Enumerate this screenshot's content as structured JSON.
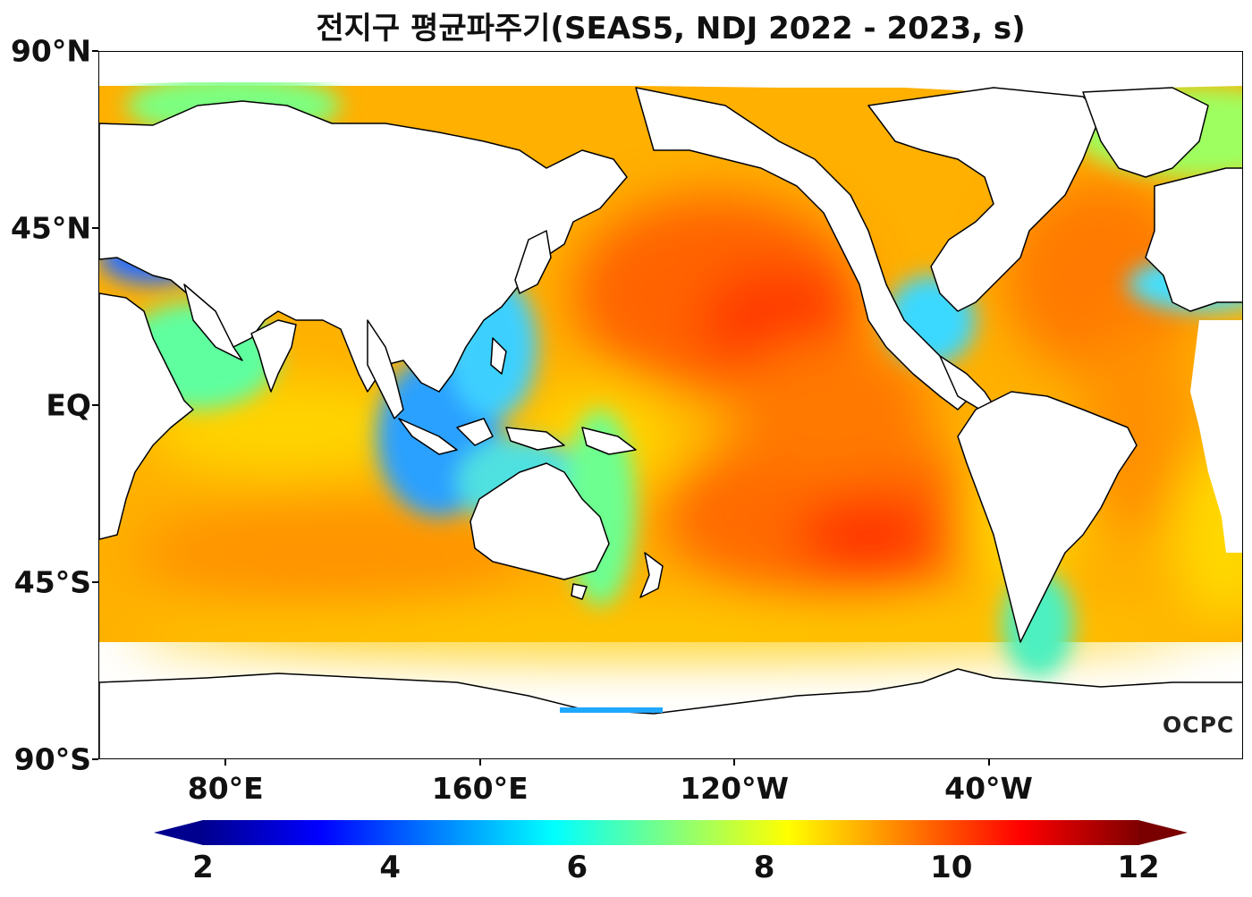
{
  "title": "전지구 평균파주기(SEAS5, NDJ 2022 - 2023, s)",
  "axes": {
    "lat_ticks": [
      {
        "label": "90°N",
        "lat": 90
      },
      {
        "label": "45°N",
        "lat": 45
      },
      {
        "label": "EQ",
        "lat": 0
      },
      {
        "label": "45°S",
        "lat": -45
      },
      {
        "label": "90°S",
        "lat": -90
      }
    ],
    "lon_ticks": [
      {
        "label": "80°E",
        "lon": 80
      },
      {
        "label": "160°E",
        "lon": 160
      },
      {
        "label": "120°W",
        "lon": 240
      },
      {
        "label": "40°W",
        "lon": 320
      }
    ],
    "lon_range": [
      40,
      400
    ],
    "lat_range": [
      -90,
      90
    ]
  },
  "colorbar": {
    "ticks": [
      "2",
      "4",
      "6",
      "8",
      "10",
      "12"
    ],
    "min": 2,
    "max": 12,
    "colormap": "jet",
    "extend": "both"
  },
  "watermark": "OCPC",
  "colors": {
    "land": "#ffffff",
    "coast": "#000000"
  }
}
